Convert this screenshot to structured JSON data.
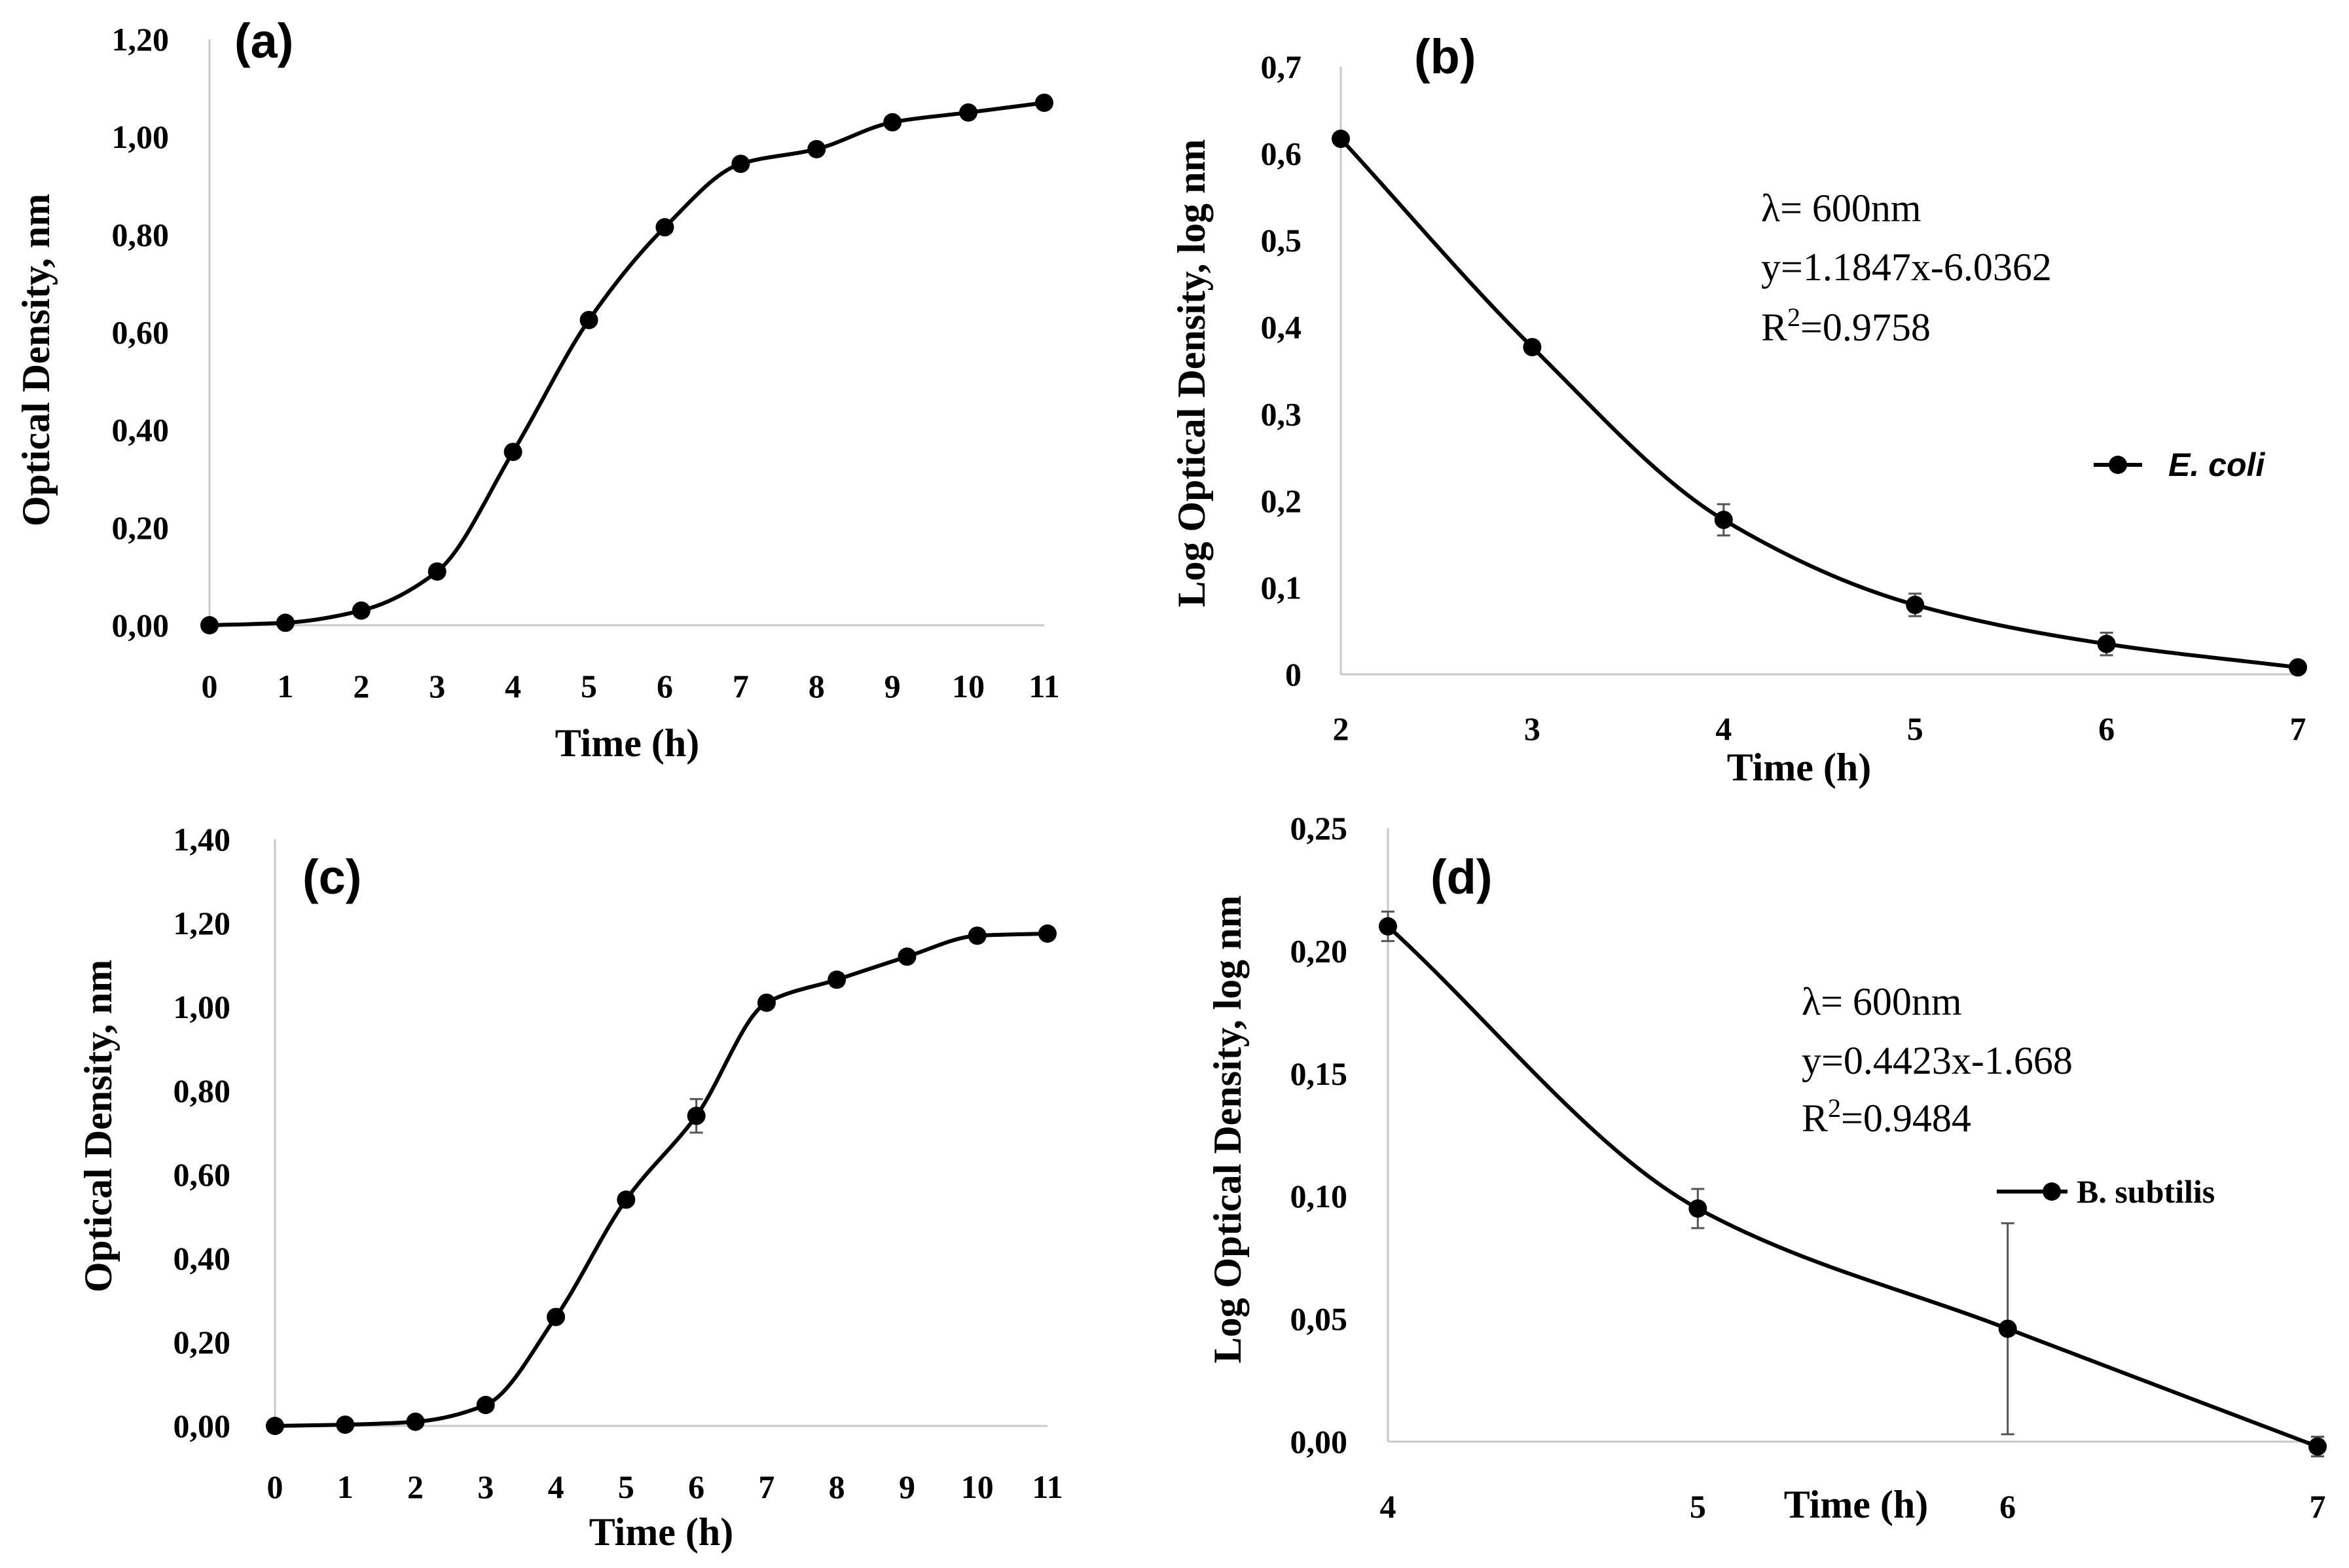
{
  "chart_data": [
    {
      "id": "a",
      "type": "line",
      "panel_label": "(a)",
      "title": "",
      "xlabel": "Time (h)",
      "ylabel": "Optical Density, nm",
      "xlim": [
        0,
        11
      ],
      "ylim": [
        0,
        1.2
      ],
      "x_ticks": [
        "0",
        "1",
        "2",
        "3",
        "4",
        "5",
        "6",
        "7",
        "8",
        "9",
        "10",
        "11"
      ],
      "y_ticks": [
        "0,00",
        "0,20",
        "0,40",
        "0,60",
        "0,80",
        "1,00",
        "1,20"
      ],
      "grid": false,
      "series": [
        {
          "name": "",
          "x": [
            0,
            1,
            2,
            3,
            4,
            5,
            6,
            7,
            8,
            9,
            10,
            11
          ],
          "y": [
            0.0,
            0.005,
            0.03,
            0.11,
            0.355,
            0.625,
            0.815,
            0.945,
            0.975,
            1.03,
            1.05,
            1.07
          ],
          "err": [
            0,
            0,
            0,
            0,
            0.012,
            0,
            0,
            0,
            0,
            0,
            0,
            0
          ]
        }
      ],
      "annotations": [],
      "legend": null
    },
    {
      "id": "b",
      "type": "line",
      "panel_label": "(b)",
      "title": "",
      "xlabel": "Time (h)",
      "ylabel": "Log Optical Density,  log nm",
      "xlim": [
        2,
        7
      ],
      "ylim": [
        0,
        0.7
      ],
      "x_ticks": [
        "2",
        "3",
        "4",
        "5",
        "6",
        "7"
      ],
      "y_ticks": [
        "0",
        "0,1",
        "0,2",
        "0,3",
        "0,4",
        "0,5",
        "0,6",
        "0,7"
      ],
      "grid": false,
      "series": [
        {
          "name": "E. coli",
          "x": [
            2,
            3,
            4,
            5,
            6,
            7
          ],
          "y": [
            0.617,
            0.377,
            0.178,
            0.08,
            0.035,
            0.008
          ],
          "err": [
            0,
            0,
            0.018,
            0.013,
            0.013,
            0
          ]
        }
      ],
      "annotations": [
        "λ= 600nm",
        "y=1.1847x-6.0362",
        "R",
        "2",
        "=0.9758"
      ],
      "legend": "right"
    },
    {
      "id": "c",
      "type": "line",
      "panel_label": "(c)",
      "title": "",
      "xlabel": "Time (h)",
      "ylabel": "Optical Density, nm",
      "xlim": [
        0,
        11
      ],
      "ylim": [
        0,
        1.4
      ],
      "x_ticks": [
        "0",
        "1",
        "2",
        "3",
        "4",
        "5",
        "6",
        "7",
        "8",
        "9",
        "10",
        "11"
      ],
      "y_ticks": [
        "0,00",
        "0,20",
        "0,40",
        "0,60",
        "0,80",
        "1,00",
        "1,20",
        "1,40"
      ],
      "grid": false,
      "series": [
        {
          "name": "",
          "x": [
            0,
            1,
            2,
            3,
            4,
            5,
            6,
            7,
            8,
            9,
            10,
            11
          ],
          "y": [
            0.0,
            0.003,
            0.01,
            0.05,
            0.26,
            0.54,
            0.74,
            1.01,
            1.065,
            1.12,
            1.17,
            1.175
          ],
          "err": [
            0,
            0,
            0,
            0,
            0,
            0,
            0.04,
            0,
            0.015,
            0,
            0,
            0
          ]
        }
      ],
      "annotations": [],
      "legend": null
    },
    {
      "id": "d",
      "type": "line",
      "panel_label": "(d)",
      "title": "",
      "xlabel": "Time (h)",
      "ylabel": "Log Optical Density,  log nm",
      "xlim": [
        4,
        7
      ],
      "ylim": [
        0,
        0.25
      ],
      "x_ticks": [
        "4",
        "5",
        "6",
        "7"
      ],
      "y_ticks": [
        "0,00",
        "0,05",
        "0,10",
        "0,15",
        "0,20",
        "0,25"
      ],
      "grid": false,
      "series": [
        {
          "name": "B. subtilis",
          "x": [
            4,
            5,
            6,
            7
          ],
          "y": [
            0.21,
            0.095,
            0.046,
            -0.002
          ],
          "err": [
            0.006,
            0.008,
            0.043,
            0.004
          ]
        }
      ],
      "annotations": [
        "λ= 600nm",
        "y=0.4423x-1.668",
        "R",
        "2",
        "=0.9484"
      ],
      "legend": "right"
    }
  ]
}
